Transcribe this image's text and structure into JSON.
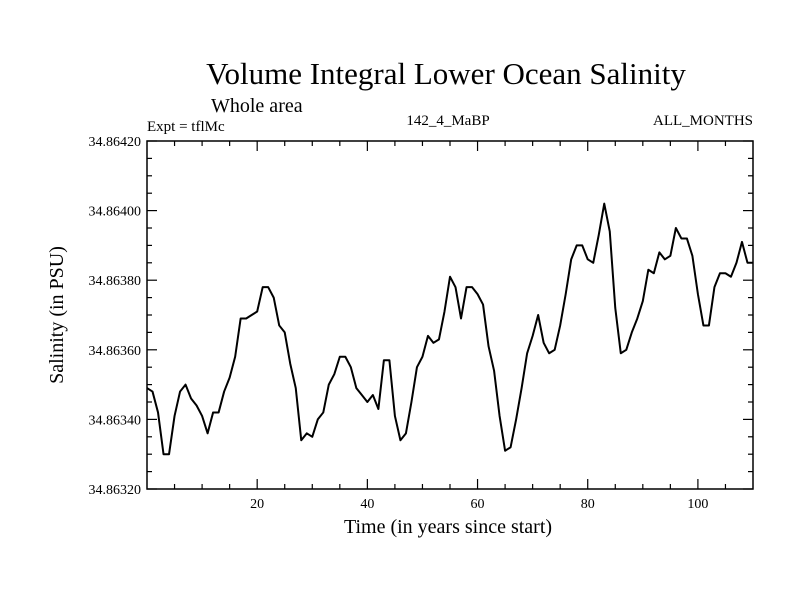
{
  "chart_data": {
    "type": "line",
    "title": "Volume Integral Lower Ocean Salinity",
    "subtitle": "Whole area",
    "left_label": "Expt = tflMc",
    "center_label": "142_4_MaBP",
    "right_label": "ALL_MONTHS",
    "xlabel": "Time (in years since start)",
    "ylabel": "Salinity (in PSU)",
    "xlim": [
      0,
      110
    ],
    "ylim": [
      34.8632,
      34.8642
    ],
    "xticks": [
      20,
      40,
      60,
      80,
      100
    ],
    "xtick_labels": [
      "20",
      "40",
      "60",
      "80",
      "100"
    ],
    "yticks": [
      34.8632,
      34.8634,
      34.8636,
      34.8638,
      34.864,
      34.8642
    ],
    "ytick_labels": [
      "34.86320",
      "34.86340",
      "34.86360",
      "34.86380",
      "34.86400",
      "34.86420"
    ],
    "series": [
      {
        "name": "Salinity",
        "x": [
          0,
          1,
          2,
          3,
          4,
          5,
          6,
          7,
          8,
          9,
          10,
          11,
          12,
          13,
          14,
          15,
          16,
          17,
          18,
          19,
          20,
          21,
          22,
          23,
          24,
          25,
          26,
          27,
          28,
          29,
          30,
          31,
          32,
          33,
          34,
          35,
          36,
          37,
          38,
          39,
          40,
          41,
          42,
          43,
          44,
          45,
          46,
          47,
          48,
          49,
          50,
          51,
          52,
          53,
          54,
          55,
          56,
          57,
          58,
          59,
          60,
          61,
          62,
          63,
          64,
          65,
          66,
          67,
          68,
          69,
          70,
          71,
          72,
          73,
          74,
          75,
          76,
          77,
          78,
          79,
          80,
          81,
          82,
          83,
          84,
          85,
          86,
          87,
          88,
          89,
          90,
          91,
          92,
          93,
          94,
          95,
          96,
          97,
          98,
          99,
          100,
          101,
          102,
          103,
          104,
          105,
          106,
          107,
          108,
          109,
          110
        ],
        "values": [
          34.86349,
          34.86348,
          34.86342,
          34.8633,
          34.8633,
          34.86341,
          34.86348,
          34.8635,
          34.86346,
          34.86344,
          34.86341,
          34.86336,
          34.86342,
          34.86342,
          34.86348,
          34.86352,
          34.86358,
          34.86369,
          34.86369,
          34.8637,
          34.86371,
          34.86378,
          34.86378,
          34.86375,
          34.86367,
          34.86365,
          34.86356,
          34.86349,
          34.86334,
          34.86336,
          34.86335,
          34.8634,
          34.86342,
          34.8635,
          34.86353,
          34.86358,
          34.86358,
          34.86355,
          34.86349,
          34.86347,
          34.86345,
          34.86347,
          34.86343,
          34.86357,
          34.86357,
          34.86341,
          34.86334,
          34.86336,
          34.86345,
          34.86355,
          34.86358,
          34.86364,
          34.86362,
          34.86363,
          34.86371,
          34.86381,
          34.86378,
          34.86369,
          34.86378,
          34.86378,
          34.86376,
          34.86373,
          34.86361,
          34.86354,
          34.86341,
          34.86331,
          34.86332,
          34.8634,
          34.86349,
          34.86359,
          34.86364,
          34.8637,
          34.86362,
          34.86359,
          34.8636,
          34.86367,
          34.86376,
          34.86386,
          34.8639,
          34.8639,
          34.86386,
          34.86385,
          34.86393,
          34.86402,
          34.86394,
          34.86372,
          34.86359,
          34.8636,
          34.86365,
          34.86369,
          34.86374,
          34.86383,
          34.86382,
          34.86388,
          34.86386,
          34.86387,
          34.86395,
          34.86392,
          34.86392,
          34.86387,
          34.86376,
          34.86367,
          34.86367,
          34.86378,
          34.86382,
          34.86382,
          34.86381,
          34.86385,
          34.86391,
          34.86385,
          34.86385
        ]
      }
    ]
  }
}
